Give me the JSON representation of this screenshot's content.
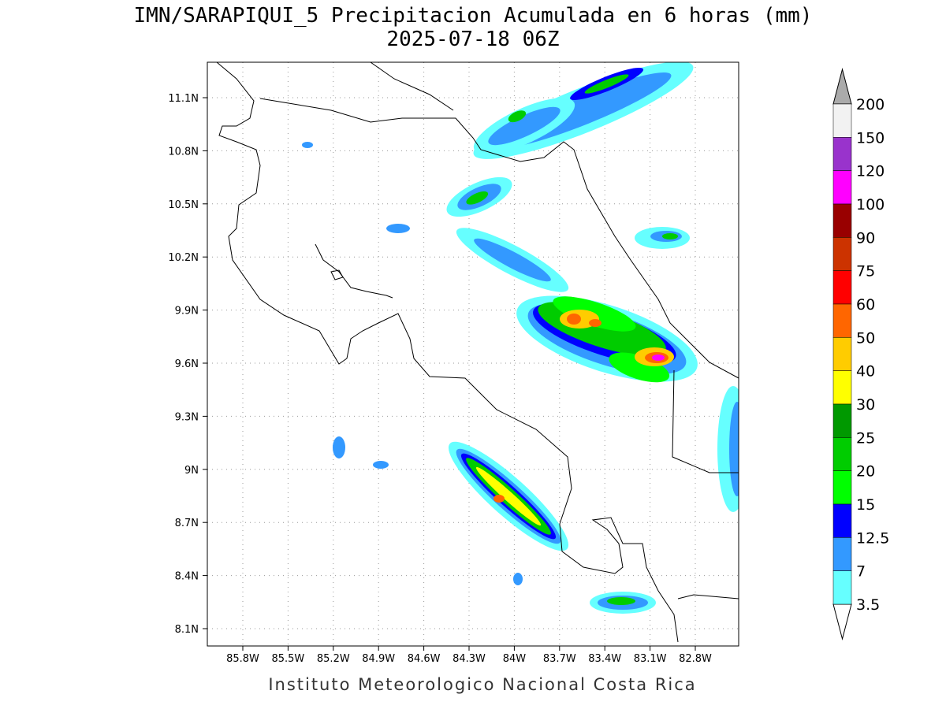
{
  "title": "IMN/SARAPIQUI_5 Precipitacion Acumulada en 6 horas (mm)",
  "subtitle": "2025-07-18 06Z",
  "x_ticks": [
    "85.8W",
    "85.5W",
    "85.2W",
    "84.9W",
    "84.6W",
    "84.3W",
    "84W",
    "83.7W",
    "83.4W",
    "83.1W",
    "82.8W"
  ],
  "y_ticks": [
    "11.1N",
    "10.8N",
    "10.5N",
    "10.2N",
    "9.9N",
    "9.6N",
    "9.3N",
    "9N",
    "8.7N",
    "8.4N",
    "8.1N"
  ],
  "colorbar": {
    "labels": [
      "200",
      "150",
      "120",
      "100",
      "90",
      "75",
      "60",
      "50",
      "40",
      "30",
      "25",
      "20",
      "15",
      "12.5",
      "7",
      "3.5"
    ],
    "colors": [
      "#f2f2f2",
      "#9933cc",
      "#ff00ff",
      "#990000",
      "#cc3300",
      "#ff0000",
      "#ff6600",
      "#ffcc00",
      "#ffff00",
      "#009900",
      "#00cc00",
      "#00ff00",
      "#0000ff",
      "#3399ff",
      "#66ffff"
    ],
    "over_color": "#aaaaaa",
    "under_color": "#ffffff"
  },
  "footer": "Instituto Meteorologico Nacional Costa Rica"
}
